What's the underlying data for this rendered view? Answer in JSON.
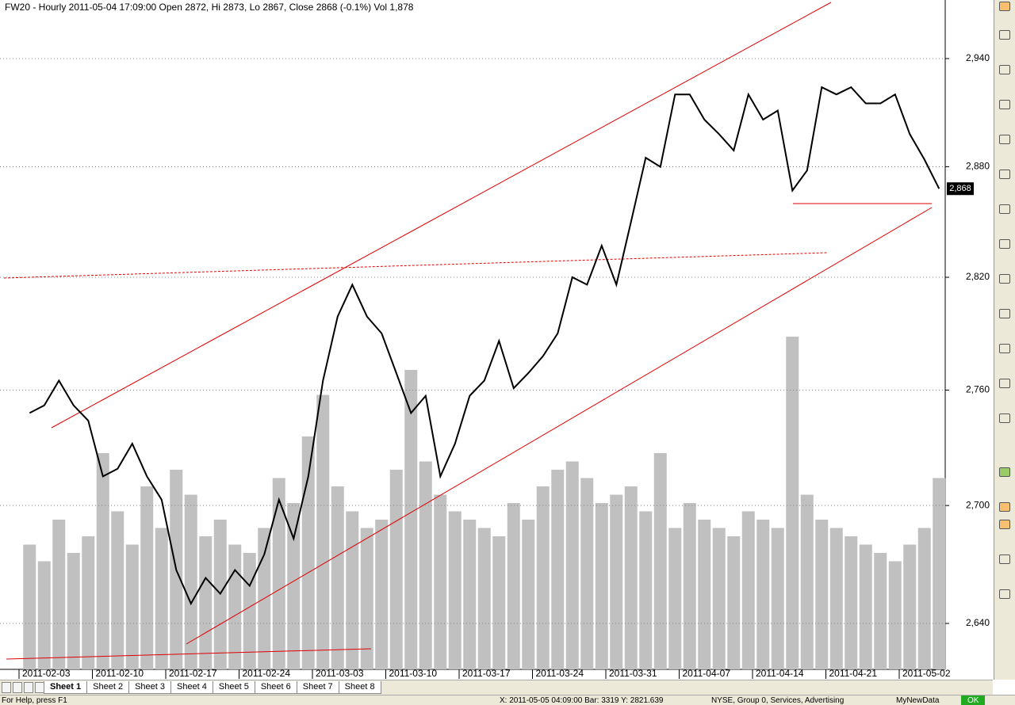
{
  "chart_data": {
    "type": "line",
    "title": "FW20 - Hourly 2011-05-04 17:09:00 Open 2872, Hi 2873, Lo 2867, Close 2868 (-0.1%) Vol 1,878",
    "categories": [
      "2011-02-03",
      null,
      null,
      null,
      null,
      "2011-02-10",
      null,
      null,
      null,
      null,
      "2011-02-17",
      null,
      null,
      null,
      null,
      "2011-02-24",
      null,
      null,
      null,
      null,
      "2011-03-03",
      null,
      null,
      null,
      null,
      "2011-03-10",
      null,
      null,
      null,
      null,
      "2011-03-17",
      null,
      null,
      null,
      null,
      "2011-03-24",
      null,
      null,
      null,
      null,
      "2011-03-31",
      null,
      null,
      null,
      null,
      "2011-04-07",
      null,
      null,
      null,
      null,
      "2011-04-14",
      null,
      null,
      null,
      null,
      "2011-04-21",
      null,
      null,
      null,
      null,
      "2011-05-02",
      null,
      null
    ],
    "values": [
      2748,
      2752,
      2765,
      2752,
      2744,
      2715,
      2719,
      2732,
      2715,
      2703,
      2667,
      2650,
      2663,
      2655,
      2667,
      2659,
      2675,
      2703,
      2683,
      2715,
      2765,
      2799,
      2816,
      2799,
      2790,
      2769,
      2748,
      2757,
      2715,
      2732,
      2757,
      2765,
      2786,
      2761,
      2769,
      2778,
      2790,
      2820,
      2816,
      2837,
      2816,
      2850,
      2885,
      2880,
      2920,
      2920,
      2906,
      2898,
      2889,
      2920,
      2906,
      2911,
      2867,
      2878,
      2924,
      2920,
      2924,
      2915,
      2915,
      2920,
      2898,
      2884,
      2868
    ],
    "color": "#000000",
    "volume": {
      "color": "#c0c0c0",
      "values": [
        1500,
        1300,
        1800,
        1400,
        1600,
        2600,
        1900,
        1500,
        2200,
        1700,
        2400,
        2100,
        1600,
        1800,
        1500,
        1400,
        1700,
        2300,
        2000,
        2800,
        3300,
        2200,
        1900,
        1700,
        1800,
        2400,
        3600,
        2500,
        2100,
        1900,
        1800,
        1700,
        1600,
        2000,
        1800,
        2200,
        2400,
        2500,
        2300,
        2000,
        2100,
        2200,
        1900,
        2600,
        1700,
        2000,
        1800,
        1700,
        1600,
        1900,
        1800,
        1700,
        4000,
        2100,
        1800,
        1700,
        1600,
        1500,
        1400,
        1300,
        1500,
        1700,
        2300
      ]
    },
    "log_scale": true,
    "ylim": [
      2617,
      2973
    ],
    "yticks": [
      {
        "value": 2640,
        "label": "2,640"
      },
      {
        "value": 2700,
        "label": "2,700"
      },
      {
        "value": 2760,
        "label": "2,760"
      },
      {
        "value": 2820,
        "label": "2,820"
      },
      {
        "value": 2880,
        "label": "2,880"
      },
      {
        "value": 2940,
        "label": "2,940"
      }
    ],
    "grid": true,
    "price_tag": {
      "value": 2868,
      "label": "2,868"
    }
  },
  "ui": {
    "tabs": [
      "Sheet 1",
      "Sheet 2",
      "Sheet 3",
      "Sheet 4",
      "Sheet 5",
      "Sheet 6",
      "Sheet 7",
      "Sheet 8"
    ],
    "status": [
      "For Help, press F1",
      "X: 2011-05-05 04:09:00  Bar: 3319   Y: 2821.639",
      "NYSE, Group 0, Services, Advertising",
      "MyNewData",
      "OK"
    ]
  }
}
